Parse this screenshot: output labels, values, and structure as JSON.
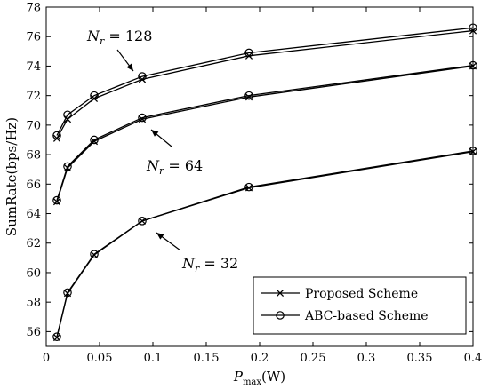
{
  "chart_data": {
    "type": "line",
    "title": "",
    "xlabel": "P_max(W)",
    "xlabel_main": "P",
    "xlabel_sub": "max",
    "xlabel_unit": "(W)",
    "ylabel": "SumRate(bps/Hz)",
    "xlim": [
      0,
      0.4
    ],
    "ylim": [
      55,
      78
    ],
    "xticks": [
      0,
      0.05,
      0.1,
      0.15,
      0.2,
      0.25,
      0.3,
      0.35,
      0.4
    ],
    "xtick_labels": [
      "0",
      "0.05",
      "0.1",
      "0.15",
      "0.2",
      "0.25",
      "0.3",
      "0.35",
      "0.4"
    ],
    "yticks": [
      56,
      58,
      60,
      62,
      64,
      66,
      68,
      70,
      72,
      74,
      76,
      78
    ],
    "ytick_labels": [
      "56",
      "58",
      "60",
      "62",
      "64",
      "66",
      "68",
      "70",
      "72",
      "74",
      "76",
      "78"
    ],
    "grid": false,
    "legend_position": "bottom-right",
    "legend": [
      {
        "label": "Proposed Scheme",
        "marker": "x"
      },
      {
        "label": "ABC-based Scheme",
        "marker": "o"
      }
    ],
    "x": [
      0.01,
      0.02,
      0.045,
      0.09,
      0.19,
      0.4
    ],
    "groups": [
      {
        "annotation": "N_r = 128",
        "annotation_var": "N",
        "annotation_sub": "r",
        "annotation_value": " = 128",
        "proposed": [
          69.1,
          70.4,
          71.8,
          73.1,
          74.7,
          76.4
        ],
        "abc": [
          69.3,
          70.7,
          72.0,
          73.3,
          74.9,
          76.6
        ]
      },
      {
        "annotation": "N_r = 64",
        "annotation_var": "N",
        "annotation_sub": "r",
        "annotation_value": " = 64",
        "proposed": [
          64.8,
          67.1,
          68.9,
          70.4,
          71.9,
          74.0
        ],
        "abc": [
          64.9,
          67.2,
          69.0,
          70.5,
          72.0,
          74.05
        ]
      },
      {
        "annotation": "N_r = 32",
        "annotation_var": "N",
        "annotation_sub": "r",
        "annotation_value": " = 32",
        "proposed": [
          55.6,
          58.6,
          61.2,
          63.5,
          65.75,
          68.2
        ],
        "abc": [
          55.65,
          58.65,
          61.25,
          63.5,
          65.8,
          68.25
        ]
      }
    ]
  }
}
